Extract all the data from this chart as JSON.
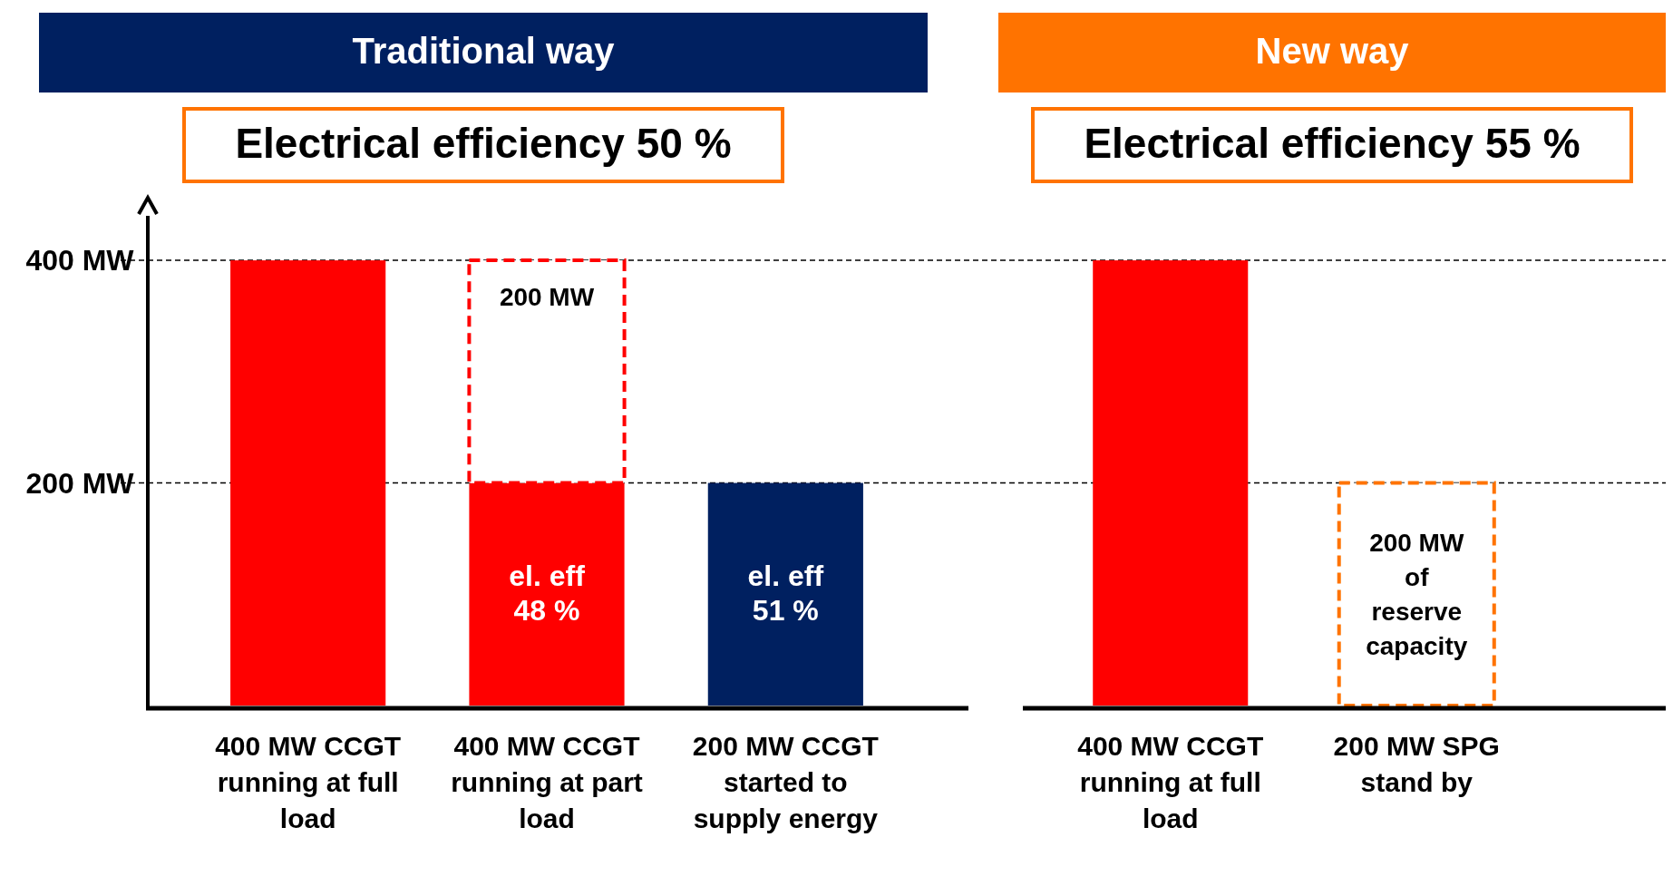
{
  "chart_data": [
    {
      "type": "bar",
      "title": "Traditional way",
      "stacked": true,
      "grid": "y",
      "categories": [
        "400 MW CCGT running at full load",
        "400 MW CCGT running at part load",
        "200 MW CCGT started to supply energy"
      ],
      "ylim": [
        0,
        440
      ],
      "yticks": [
        {
          "value": 200,
          "label": "200 MW"
        },
        {
          "value": 400,
          "label": "400 MW"
        }
      ],
      "series": [
        {
          "type": "bar",
          "values": [
            400,
            200,
            200
          ],
          "colors": [
            "#ff0000",
            "#ff0000",
            "#002060"
          ],
          "value_labels": [
            null,
            "el. eff 48 %",
            "el. eff 51 %"
          ]
        },
        {
          "type": "bar",
          "line_style": "dashed",
          "color": "#ff0000",
          "values": [
            null,
            200,
            null
          ],
          "value_labels": [
            null,
            "200 MW",
            null
          ]
        }
      ],
      "annotations": [
        "Electrical efficiency 50 %"
      ]
    },
    {
      "type": "bar",
      "title": "New way",
      "stacked": true,
      "tick_labels": "x",
      "categories": [
        "400 MW CCGT running at full load",
        "200 MW SPG stand by"
      ],
      "ylim": [
        0,
        400
      ],
      "series": [
        {
          "type": "bar",
          "values": [
            400,
            null
          ],
          "color": "#ff0000"
        },
        {
          "type": "bar",
          "line_style": "dashed",
          "color": "#ff7300",
          "values": [
            null,
            200
          ],
          "value_labels": [
            null,
            "200 MW of reserve capacity"
          ]
        }
      ],
      "annotations": [
        "Electrical efficiency 55 %"
      ]
    }
  ]
}
